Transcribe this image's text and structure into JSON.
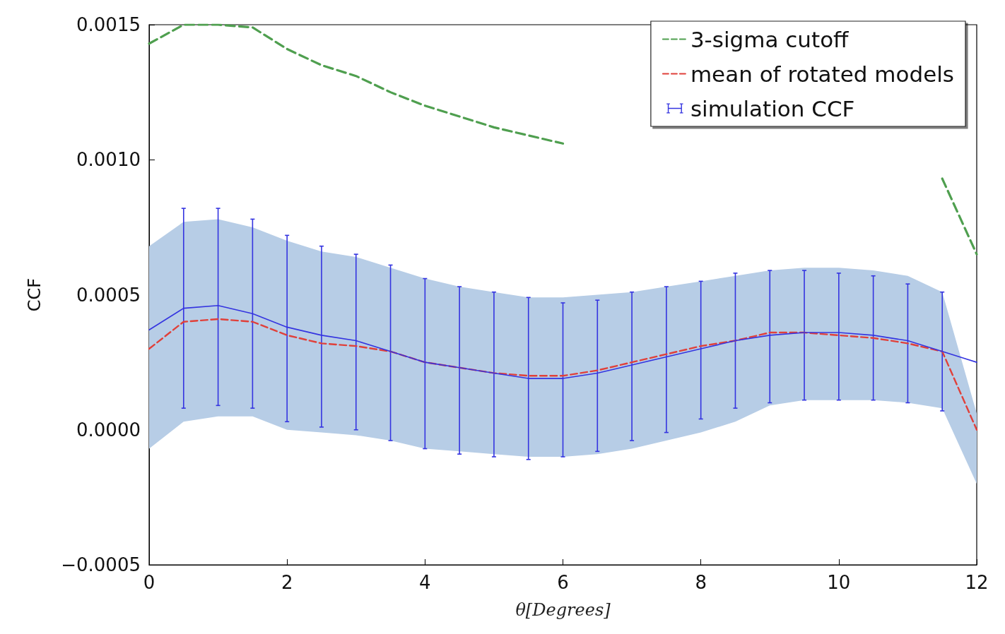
{
  "chart_data": {
    "type": "line",
    "xlabel": "θ[Degrees]",
    "ylabel": "CCF",
    "x": [
      0,
      0.5,
      1,
      1.5,
      2,
      2.5,
      3,
      3.5,
      4,
      4.5,
      5,
      5.5,
      6,
      6.5,
      7,
      7.5,
      8,
      8.5,
      9,
      9.5,
      10,
      10.5,
      11,
      11.5,
      12
    ],
    "xlim": [
      0,
      12
    ],
    "xticks": [
      0,
      2,
      4,
      6,
      8,
      10,
      12
    ],
    "ylim": [
      -0.0005,
      0.0015
    ],
    "yticks": [
      {
        "value": -0.0005,
        "label": "−0.0005"
      },
      {
        "value": 0,
        "label": "0.0000"
      },
      {
        "value": 0.0005,
        "label": "0.0005"
      },
      {
        "value": 0.001,
        "label": "0.0010"
      },
      {
        "value": 0.0015,
        "label": "0.0015"
      }
    ],
    "grid": false,
    "legend": "top right",
    "marker": "none",
    "series": [
      {
        "name": "3-sigma cutoff",
        "color": "#4f9f4f",
        "line_style": "dashed",
        "values": [
          0.00143,
          0.0015,
          0.0015,
          0.00149,
          0.00141,
          0.00135,
          0.00131,
          0.00125,
          0.0012,
          0.00116,
          0.00112,
          0.00109,
          0.00106,
          null,
          null,
          null,
          null,
          null,
          null,
          null,
          null,
          null,
          null,
          0.00093,
          0.00065
        ]
      },
      {
        "name": "mean of rotated models",
        "color": "#e0403a",
        "line_style": "dashed",
        "values": [
          0.0003,
          0.0004,
          0.00041,
          0.0004,
          0.00035,
          0.00032,
          0.00031,
          0.00029,
          0.00025,
          0.00023,
          0.00021,
          0.0002,
          0.0002,
          0.00022,
          0.00025,
          0.00028,
          0.00031,
          0.00033,
          0.00036,
          0.00036,
          0.00035,
          0.00034,
          0.00032,
          0.00029,
          0.0
        ]
      },
      {
        "name": "simulation CCF",
        "color": "#3434e0",
        "line_style": "solid",
        "values": [
          0.00037,
          0.00045,
          0.00046,
          0.00043,
          0.00038,
          0.00035,
          0.00033,
          0.00029,
          0.00025,
          0.00023,
          0.00021,
          0.00019,
          0.00019,
          0.00021,
          0.00024,
          0.00027,
          0.0003,
          0.00033,
          0.00035,
          0.00036,
          0.00036,
          0.00035,
          0.00033,
          0.00029,
          0.00025
        ],
        "errors": [
          null,
          [
            8e-05,
            0.00082
          ],
          [
            9e-05,
            0.00082
          ],
          [
            8e-05,
            0.00078
          ],
          [
            3e-05,
            0.00072
          ],
          [
            1e-05,
            0.00068
          ],
          [
            0.0,
            0.00065
          ],
          [
            -4e-05,
            0.00061
          ],
          [
            -7e-05,
            0.00056
          ],
          [
            -9e-05,
            0.00053
          ],
          [
            -0.0001,
            0.00051
          ],
          [
            -0.00011,
            0.00049
          ],
          [
            -0.0001,
            0.00047
          ],
          [
            -8e-05,
            0.00048
          ],
          [
            -4e-05,
            0.00051
          ],
          [
            -1e-05,
            0.00053
          ],
          [
            4e-05,
            0.00055
          ],
          [
            8e-05,
            0.00058
          ],
          [
            0.0001,
            0.00059
          ],
          [
            0.00011,
            0.00059
          ],
          [
            0.00011,
            0.00058
          ],
          [
            0.00011,
            0.00057
          ],
          [
            0.0001,
            0.00054
          ],
          [
            7e-05,
            0.00051
          ],
          null
        ],
        "lower": [
          -7e-05,
          3e-05,
          5e-05,
          5e-05,
          0.0,
          -1e-05,
          -2e-05,
          -4e-05,
          -7e-05,
          -8e-05,
          -9e-05,
          -0.0001,
          -0.0001,
          -9e-05,
          -7e-05,
          -4e-05,
          -1e-05,
          3e-05,
          9e-05,
          0.00011,
          0.00011,
          0.00011,
          0.0001,
          8e-05,
          -0.0002
        ],
        "upper": [
          0.00068,
          0.00077,
          0.00078,
          0.00075,
          0.0007,
          0.00066,
          0.00064,
          0.0006,
          0.00056,
          0.00053,
          0.00051,
          0.00049,
          0.00049,
          0.0005,
          0.00051,
          0.00053,
          0.00055,
          0.00057,
          0.00059,
          0.0006,
          0.0006,
          0.00059,
          0.00057,
          0.00051,
          6e-05
        ]
      }
    ]
  }
}
